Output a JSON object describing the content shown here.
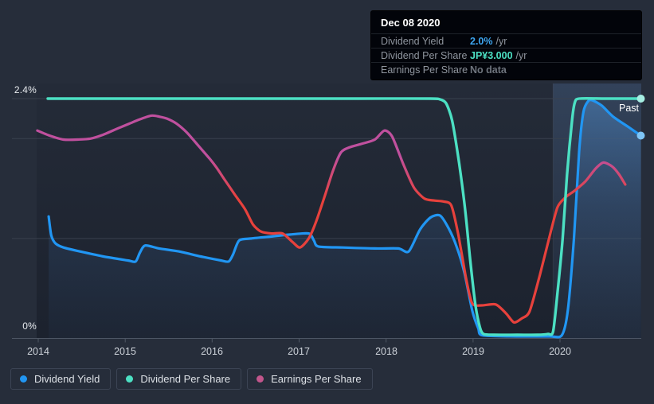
{
  "axis": {
    "y_top_label": "2.4%",
    "y_bottom_label": "0%",
    "x_labels": [
      "2014",
      "2015",
      "2016",
      "2017",
      "2018",
      "2019",
      "2020"
    ],
    "past_label": "Past"
  },
  "tooltip": {
    "date": "Dec 08 2020",
    "rows": [
      {
        "label": "Dividend Yield",
        "value": "2.0%",
        "suffix": "/yr",
        "value_color": "#3ea6f0"
      },
      {
        "label": "Dividend Per Share",
        "value": "JP¥3.000",
        "suffix": "/yr",
        "value_color": "#4ce0c3"
      },
      {
        "label": "Earnings Per Share",
        "value": "No data",
        "suffix": "",
        "value_color": "#6e747d"
      }
    ]
  },
  "legend": [
    {
      "label": "Dividend Yield",
      "color": "#2196f3"
    },
    {
      "label": "Dividend Per Share",
      "color": "#4ce0c3"
    },
    {
      "label": "Earnings Per Share",
      "color": "#c2568c"
    }
  ],
  "colors": {
    "background": "#262d3a",
    "plot_bg_top": "#242b38",
    "plot_bg_bottom": "#1c222e",
    "gridline": "#39414e",
    "axis_line": "#4e5664",
    "yield_line": "#2196f3",
    "yield_dot": "#7ec5f6",
    "dps_line": "#4ce0c3",
    "dps_dot": "#a6eee2",
    "eps_high": "#c0509e",
    "eps_low": "#e7413c"
  },
  "chart_data": {
    "type": "line",
    "title": "Dividend history (past)",
    "x_axis": {
      "min": 2014,
      "max": 2020.95,
      "ticks": [
        2014,
        2015,
        2016,
        2017,
        2018,
        2019,
        2020
      ]
    },
    "y_axis": {
      "unit": "%",
      "min": 0,
      "max": 2.4,
      "labeled_gridlines": [
        0,
        2.4
      ],
      "unlabeled_gridlines": [
        1,
        2
      ]
    },
    "past_band_start": 2019.92,
    "legend_position": "bottom-left",
    "series": [
      {
        "id": "dividend_yield",
        "name": "Dividend Yield",
        "unit": "%/yr",
        "color": "#2196f3",
        "end_dot": true,
        "area_fill": true,
        "points": [
          [
            2014.12,
            1.22
          ],
          [
            2014.15,
            1.03
          ],
          [
            2014.2,
            0.95
          ],
          [
            2014.29,
            0.91
          ],
          [
            2014.48,
            0.87
          ],
          [
            2014.75,
            0.82
          ],
          [
            2015.03,
            0.78
          ],
          [
            2015.12,
            0.77
          ],
          [
            2015.17,
            0.86
          ],
          [
            2015.23,
            0.93
          ],
          [
            2015.39,
            0.9
          ],
          [
            2015.62,
            0.87
          ],
          [
            2015.87,
            0.82
          ],
          [
            2016.1,
            0.78
          ],
          [
            2016.19,
            0.77
          ],
          [
            2016.24,
            0.84
          ],
          [
            2016.31,
            0.98
          ],
          [
            2016.45,
            1.0
          ],
          [
            2016.68,
            1.02
          ],
          [
            2016.9,
            1.04
          ],
          [
            2017.11,
            1.05
          ],
          [
            2017.17,
            0.98
          ],
          [
            2017.22,
            0.92
          ],
          [
            2017.5,
            0.91
          ],
          [
            2017.87,
            0.9
          ],
          [
            2018.14,
            0.9
          ],
          [
            2018.26,
            0.87
          ],
          [
            2018.39,
            1.09
          ],
          [
            2018.51,
            1.21
          ],
          [
            2018.62,
            1.23
          ],
          [
            2018.72,
            1.1
          ],
          [
            2018.81,
            0.92
          ],
          [
            2018.9,
            0.66
          ],
          [
            2018.99,
            0.28
          ],
          [
            2019.06,
            0.1
          ],
          [
            2019.11,
            0.03
          ],
          [
            2019.51,
            0.02
          ],
          [
            2019.88,
            0.02
          ],
          [
            2020.02,
            0.03
          ],
          [
            2020.09,
            0.28
          ],
          [
            2020.16,
            1.0
          ],
          [
            2020.22,
            1.87
          ],
          [
            2020.27,
            2.27
          ],
          [
            2020.33,
            2.38
          ],
          [
            2020.38,
            2.38
          ],
          [
            2020.48,
            2.33
          ],
          [
            2020.61,
            2.22
          ],
          [
            2020.78,
            2.12
          ],
          [
            2020.93,
            2.03
          ]
        ]
      },
      {
        "id": "dividend_per_share",
        "name": "Dividend Per Share",
        "unit": "JP¥/yr",
        "color": "#4ce0c3",
        "end_dot": true,
        "area_fill": false,
        "value_at_top": 3.0,
        "points": [
          [
            2014.11,
            3.0
          ],
          [
            2014.93,
            3.0
          ],
          [
            2016.31,
            3.0
          ],
          [
            2017.68,
            3.0
          ],
          [
            2018.51,
            3.0
          ],
          [
            2018.62,
            2.99
          ],
          [
            2018.69,
            2.94
          ],
          [
            2018.76,
            2.72
          ],
          [
            2018.84,
            2.18
          ],
          [
            2018.91,
            1.58
          ],
          [
            2018.97,
            0.92
          ],
          [
            2019.03,
            0.36
          ],
          [
            2019.08,
            0.09
          ],
          [
            2019.12,
            0.01
          ],
          [
            2019.24,
            0.0
          ],
          [
            2019.51,
            0.0
          ],
          [
            2019.74,
            0.0
          ],
          [
            2019.86,
            0.01
          ],
          [
            2019.92,
            0.04
          ],
          [
            2019.97,
            0.52
          ],
          [
            2020.03,
            1.22
          ],
          [
            2020.08,
            2.03
          ],
          [
            2020.14,
            2.74
          ],
          [
            2020.17,
            2.95
          ],
          [
            2020.22,
            3.0
          ],
          [
            2020.52,
            3.0
          ],
          [
            2020.93,
            3.0
          ]
        ]
      },
      {
        "id": "earnings_per_share",
        "name": "Earnings Per Share",
        "unit": "axis-relative (no scale shown)",
        "gradient": [
          "#c0509e",
          "#e7413c"
        ],
        "end_dot": false,
        "area_fill": false,
        "points": [
          [
            2013.99,
            2.08
          ],
          [
            2014.13,
            2.03
          ],
          [
            2014.29,
            1.99
          ],
          [
            2014.45,
            1.99
          ],
          [
            2014.6,
            2.0
          ],
          [
            2014.75,
            2.04
          ],
          [
            2014.91,
            2.1
          ],
          [
            2015.05,
            2.15
          ],
          [
            2015.16,
            2.19
          ],
          [
            2015.3,
            2.23
          ],
          [
            2015.39,
            2.22
          ],
          [
            2015.48,
            2.2
          ],
          [
            2015.59,
            2.15
          ],
          [
            2015.71,
            2.06
          ],
          [
            2015.85,
            1.92
          ],
          [
            2015.97,
            1.8
          ],
          [
            2016.05,
            1.71
          ],
          [
            2016.15,
            1.58
          ],
          [
            2016.26,
            1.44
          ],
          [
            2016.38,
            1.29
          ],
          [
            2016.47,
            1.14
          ],
          [
            2016.56,
            1.07
          ],
          [
            2016.68,
            1.05
          ],
          [
            2016.81,
            1.05
          ],
          [
            2016.93,
            0.96
          ],
          [
            2017.01,
            0.91
          ],
          [
            2017.11,
            1.0
          ],
          [
            2017.2,
            1.18
          ],
          [
            2017.3,
            1.44
          ],
          [
            2017.39,
            1.68
          ],
          [
            2017.48,
            1.86
          ],
          [
            2017.57,
            1.91
          ],
          [
            2017.73,
            1.95
          ],
          [
            2017.87,
            1.99
          ],
          [
            2017.98,
            2.08
          ],
          [
            2018.07,
            2.02
          ],
          [
            2018.2,
            1.74
          ],
          [
            2018.32,
            1.51
          ],
          [
            2018.44,
            1.4
          ],
          [
            2018.55,
            1.38
          ],
          [
            2018.66,
            1.37
          ],
          [
            2018.75,
            1.33
          ],
          [
            2018.83,
            1.04
          ],
          [
            2018.92,
            0.6
          ],
          [
            2018.99,
            0.35
          ],
          [
            2019.1,
            0.33
          ],
          [
            2019.26,
            0.34
          ],
          [
            2019.38,
            0.25
          ],
          [
            2019.47,
            0.16
          ],
          [
            2019.56,
            0.2
          ],
          [
            2019.65,
            0.27
          ],
          [
            2019.77,
            0.64
          ],
          [
            2019.88,
            1.02
          ],
          [
            2019.97,
            1.31
          ],
          [
            2020.06,
            1.41
          ],
          [
            2020.17,
            1.48
          ],
          [
            2020.29,
            1.57
          ],
          [
            2020.41,
            1.7
          ],
          [
            2020.5,
            1.76
          ],
          [
            2020.6,
            1.72
          ],
          [
            2020.68,
            1.64
          ],
          [
            2020.75,
            1.54
          ]
        ]
      }
    ]
  }
}
